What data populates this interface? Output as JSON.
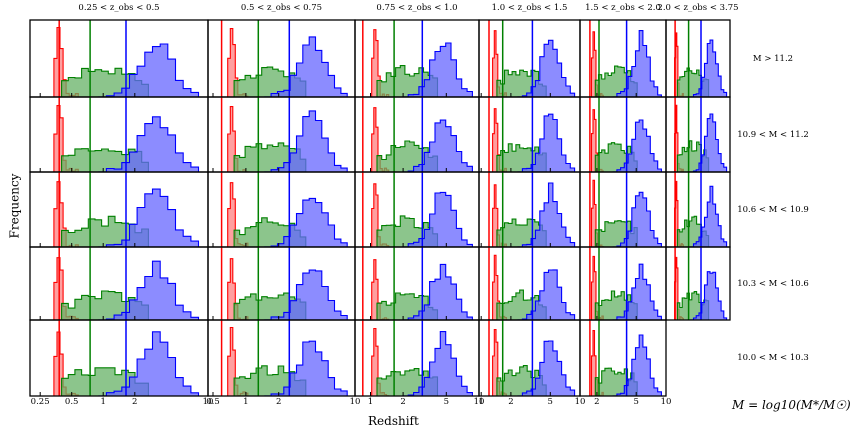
{
  "chart_data": {
    "type": "histogram-grid",
    "xlabel": "Redshift",
    "ylabel": "Frequency",
    "mass_definition": "M = log10(M*/M☉)",
    "x_scale": "log",
    "columns": [
      {
        "title": "0.25 < z_obs < 0.5",
        "xlim": [
          0.2,
          10
        ],
        "ticks": [
          "0.25",
          "0.5",
          "1",
          "2",
          "10"
        ],
        "tick_values": [
          0.25,
          0.5,
          1,
          2,
          10
        ]
      },
      {
        "title": "0.5 < z_obs < 0.75",
        "xlim": [
          0.45,
          10
        ],
        "ticks": [
          "0.5",
          "1",
          "2",
          "10"
        ],
        "tick_values": [
          0.5,
          1,
          2,
          10
        ]
      },
      {
        "title": "0.75 < z_obs < 1.0",
        "xlim": [
          0.72,
          10
        ],
        "ticks": [
          "1",
          "2",
          "5",
          "10"
        ],
        "tick_values": [
          1,
          2,
          5,
          10
        ]
      },
      {
        "title": "1.0 < z_obs < 1.5",
        "xlim": [
          0.95,
          10
        ],
        "ticks": [
          "1",
          "2",
          "5",
          "10"
        ],
        "tick_values": [
          1,
          2,
          5,
          10
        ]
      },
      {
        "title": "1.5 < z_obs < 2.0",
        "xlim": [
          1.35,
          10
        ],
        "ticks": [
          "2",
          "5",
          "10"
        ],
        "tick_values": [
          2,
          5,
          10
        ]
      },
      {
        "title": "2.0 < z_obs < 3.75",
        "xlim": [
          1.8,
          10
        ],
        "ticks": [],
        "tick_values": []
      }
    ],
    "rows": [
      {
        "label": "M > 11.2"
      },
      {
        "label": "10.9 < M < 11.2"
      },
      {
        "label": "10.6 < M < 10.9"
      },
      {
        "label": "10.3 < M < 10.6"
      },
      {
        "label": "10.0 < M < 10.3"
      }
    ],
    "series": [
      {
        "name": "red",
        "color": "#ff0000",
        "fill": "#ff7f7f",
        "median_redshift": [
          0.38,
          0.6,
          0.85,
          1.2,
          1.7,
          2.3
        ]
      },
      {
        "name": "green",
        "color": "#008000",
        "fill": "#66b266",
        "median_redshift": [
          0.75,
          1.3,
          1.65,
          1.65,
          2.1,
          3.3
        ]
      },
      {
        "name": "blue",
        "color": "#0000ff",
        "fill": "#6666ff",
        "median_redshift": [
          1.65,
          2.5,
          3.0,
          3.3,
          4.0,
          4.6
        ]
      }
    ],
    "empty_panels": [
      [
        4,
        5
      ]
    ]
  }
}
